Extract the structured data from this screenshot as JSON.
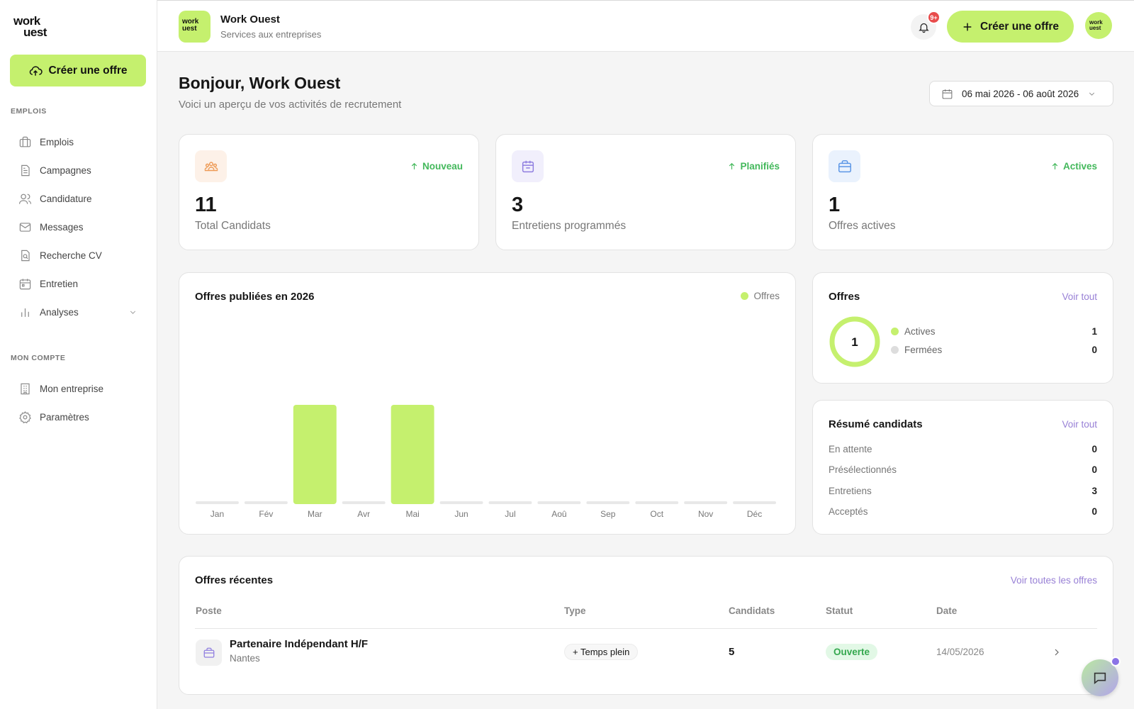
{
  "sidebar": {
    "logo_line1": "work",
    "logo_line2": "uest",
    "cta_label": "Créer une offre",
    "section_jobs": "EMPLOIS",
    "section_account": "MON COMPTE",
    "jobs_items": [
      {
        "label": "Emplois",
        "icon": "briefcase-icon"
      },
      {
        "label": "Campagnes",
        "icon": "document-icon"
      },
      {
        "label": "Candidature",
        "icon": "users-icon"
      },
      {
        "label": "Messages",
        "icon": "mail-icon"
      },
      {
        "label": "Recherche CV",
        "icon": "file-search-icon"
      },
      {
        "label": "Entretien",
        "icon": "calendar-icon"
      },
      {
        "label": "Analyses",
        "icon": "bar-chart-icon"
      }
    ],
    "account_items": [
      {
        "label": "Mon entreprise",
        "icon": "building-icon"
      },
      {
        "label": "Paramètres",
        "icon": "gear-icon"
      }
    ]
  },
  "header": {
    "company_logo_text": "work uest",
    "company_name": "Work Ouest",
    "company_sub": "Services aux entreprises",
    "notifications_badge": "9+",
    "cta_label": "Créer une offre",
    "avatar_text": "work uest"
  },
  "main": {
    "greeting": "Bonjour, Work Ouest",
    "greeting_sub": "Voici un aperçu de vos activités de recrutement",
    "date_range": "06 mai 2026 - 06 août 2026"
  },
  "stats": [
    {
      "value": "11",
      "label": "Total Candidats",
      "trend": "Nouveau",
      "icon": "people-icon",
      "icon_bg": "#fdf1e8",
      "icon_color": "#ee9a55"
    },
    {
      "value": "3",
      "label": "Entretiens programmés",
      "trend": "Planifiés",
      "icon": "calendar-icon",
      "icon_bg": "#f1effc",
      "icon_color": "#8f7ee0"
    },
    {
      "value": "1",
      "label": "Offres actives",
      "trend": "Actives",
      "icon": "briefcase-icon",
      "icon_bg": "#eaf2fd",
      "icon_color": "#5b96e6"
    }
  ],
  "colors": {
    "accent": "#c5f06e",
    "trend": "#43b85b",
    "link": "#9880d6",
    "empty_bar": "#e8e8e8"
  },
  "chart_data": {
    "type": "bar",
    "title": "Offres publiées en 2026",
    "legend": "Offres",
    "legend_position": "top-right",
    "categories": [
      "Jan",
      "Fév",
      "Mar",
      "Avr",
      "Mai",
      "Jun",
      "Jul",
      "Aoû",
      "Sep",
      "Oct",
      "Nov",
      "Déc"
    ],
    "values": [
      0,
      0,
      1,
      0,
      1,
      0,
      0,
      0,
      0,
      0,
      0,
      0
    ],
    "ylim": [
      0,
      1
    ],
    "grid": false,
    "color": "#c5f06e"
  },
  "offres": {
    "title": "Offres",
    "link": "Voir tout",
    "total": "1",
    "rows": [
      {
        "label": "Actives",
        "value": "1",
        "color": "#c5f06e"
      },
      {
        "label": "Fermées",
        "value": "0",
        "color": "#dddddd"
      }
    ]
  },
  "resume": {
    "title": "Résumé candidats",
    "link": "Voir tout",
    "rows": [
      {
        "label": "En attente",
        "value": "0"
      },
      {
        "label": "Présélectionnés",
        "value": "0"
      },
      {
        "label": "Entretiens",
        "value": "3"
      },
      {
        "label": "Acceptés",
        "value": "0"
      }
    ]
  },
  "recent": {
    "title": "Offres récentes",
    "link": "Voir toutes les offres",
    "columns": [
      "Poste",
      "Type",
      "Candidats",
      "Statut",
      "Date"
    ],
    "rows": [
      {
        "title": "Partenaire Indépendant H/F",
        "location": "Nantes",
        "type": "+ Temps plein",
        "candidates": "5",
        "status": "Ouverte",
        "date": "14/05/2026"
      }
    ]
  }
}
